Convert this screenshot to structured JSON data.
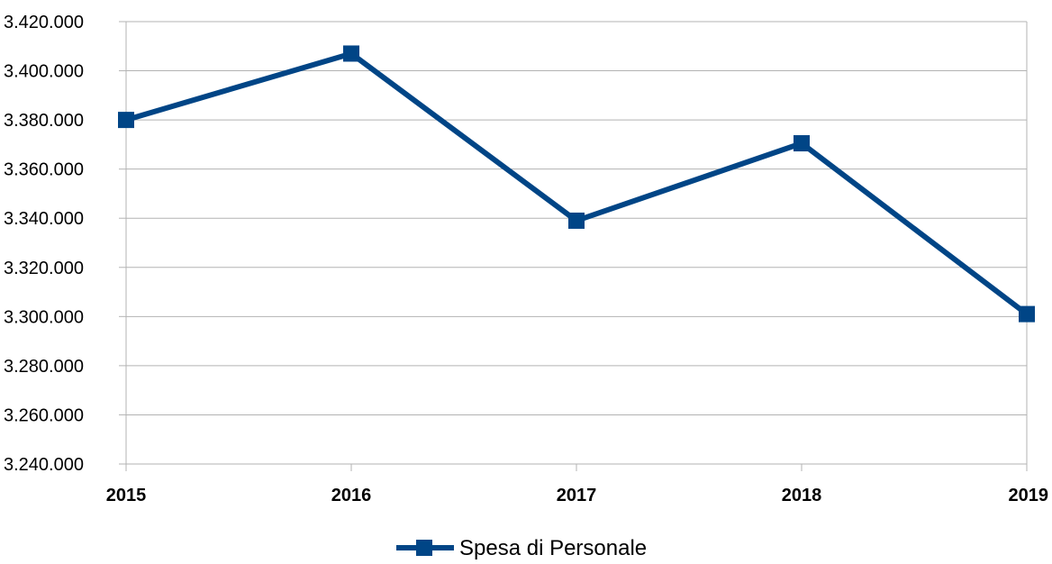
{
  "chart_data": {
    "type": "line",
    "categories": [
      "2015",
      "2016",
      "2017",
      "2018",
      "2019"
    ],
    "series": [
      {
        "name": "Spesa di Personale",
        "values": [
          3380000,
          3407000,
          3339000,
          3370500,
          3301000
        ],
        "color": "#004586",
        "marker": "square"
      }
    ],
    "y_ticks": [
      3240000,
      3260000,
      3280000,
      3300000,
      3320000,
      3340000,
      3360000,
      3380000,
      3400000,
      3420000
    ],
    "y_tick_labels": [
      "3.240.000",
      "3.260.000",
      "3.280.000",
      "3.300.000",
      "3.320.000",
      "3.340.000",
      "3.360.000",
      "3.380.000",
      "3.400.000",
      "3.420.000"
    ],
    "ylim": [
      3240000,
      3420000
    ],
    "grid": true,
    "gridline_color": "#b3b3b3",
    "legend_position": "bottom-center"
  }
}
